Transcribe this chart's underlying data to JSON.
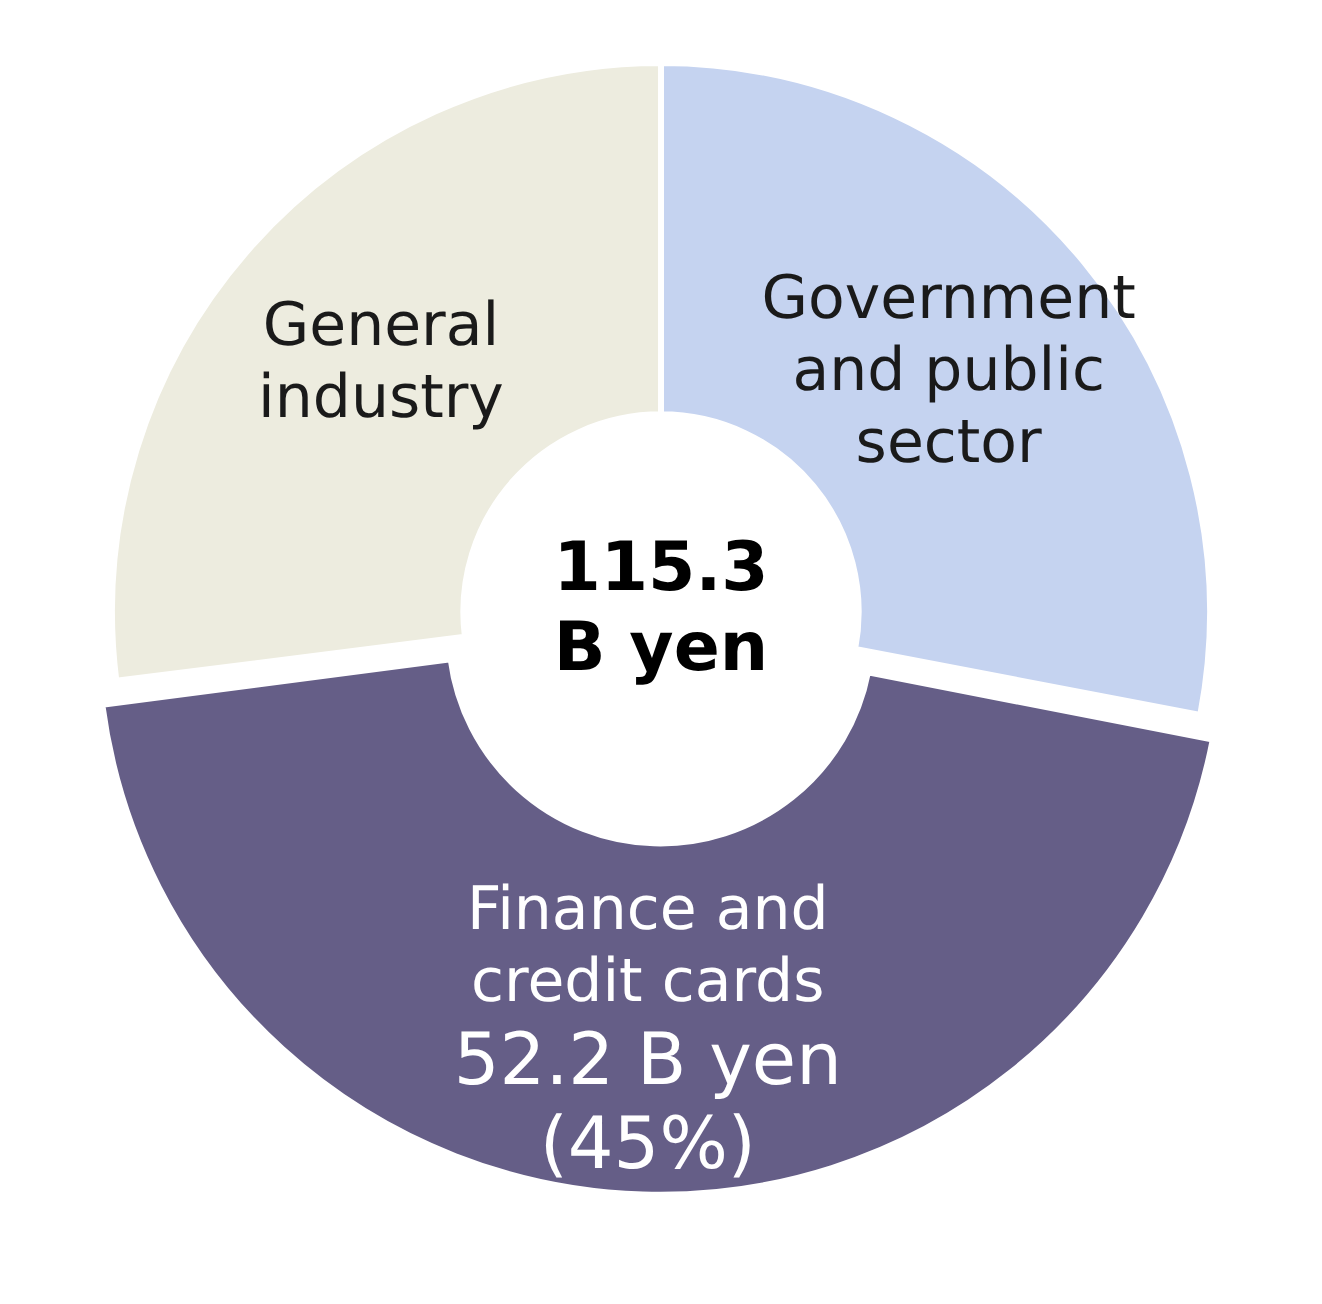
{
  "chart_data": {
    "type": "donut",
    "categories": [
      "Government and public sector",
      "Finance and credit cards",
      "General industry"
    ],
    "values": [
      28,
      45,
      27
    ],
    "colors": [
      "#c5d3f0",
      "#655e87",
      "#edecdf"
    ],
    "value_labels": [
      null,
      "52.2 B yen (45%)",
      null
    ],
    "annotations": [
      "115.3 B yen"
    ],
    "legend": false
  }
}
